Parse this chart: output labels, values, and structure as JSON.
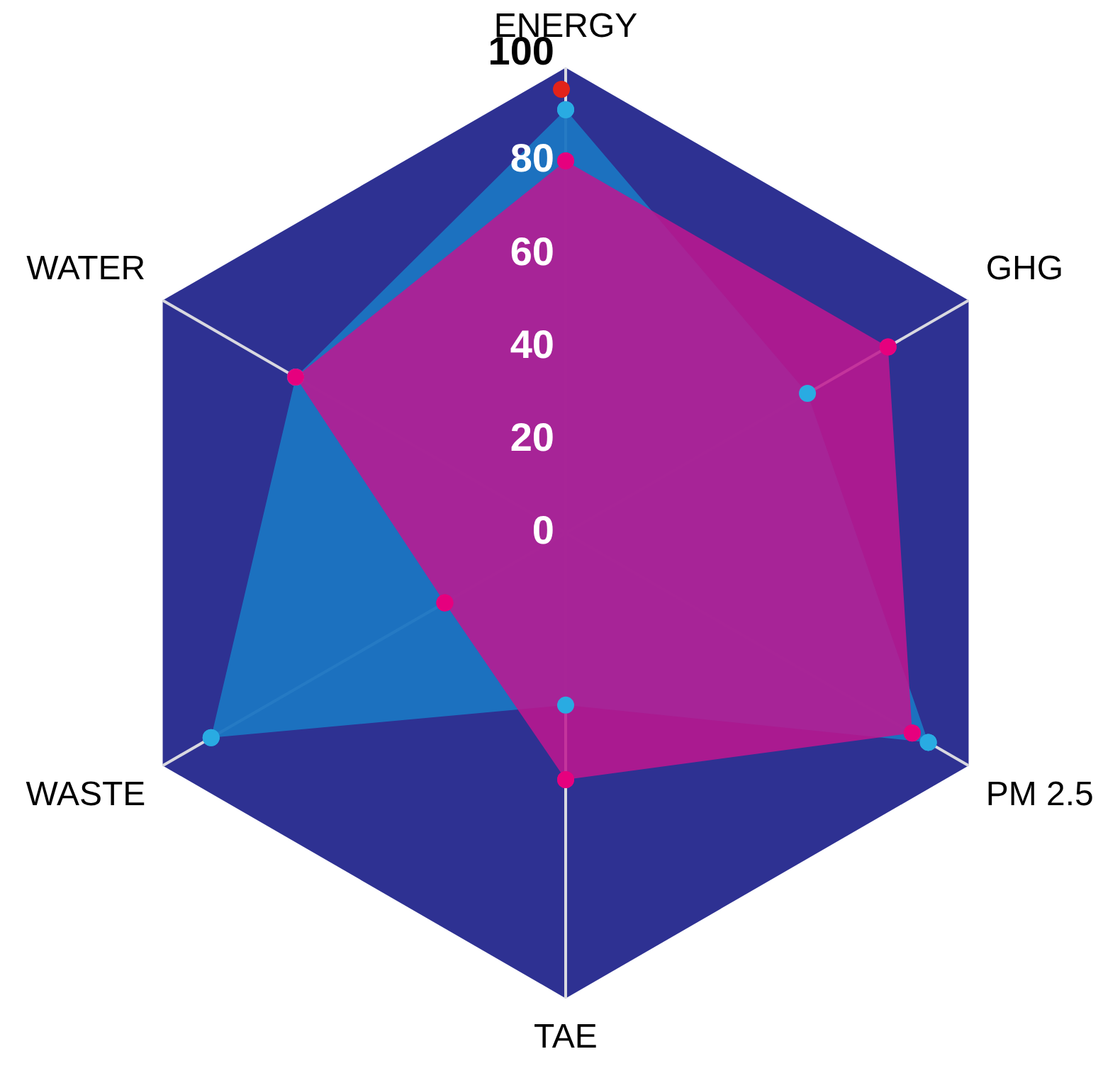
{
  "chart_data": {
    "type": "radar",
    "categories": [
      "ENERGY",
      "GHG",
      "PM 2.5",
      "TAE",
      "WASTE",
      "WATER"
    ],
    "series": [
      {
        "color": "#1b75c2",
        "values": [
          91,
          60,
          90,
          37,
          88,
          67
        ]
      },
      {
        "color": "#c0168f",
        "values": [
          80,
          80,
          86,
          53,
          30,
          67
        ]
      }
    ],
    "ylim": [
      0,
      100
    ],
    "yticks": [
      0,
      20,
      40,
      60,
      80,
      100
    ],
    "grid": false,
    "legend": false,
    "marker": "circle"
  }
}
